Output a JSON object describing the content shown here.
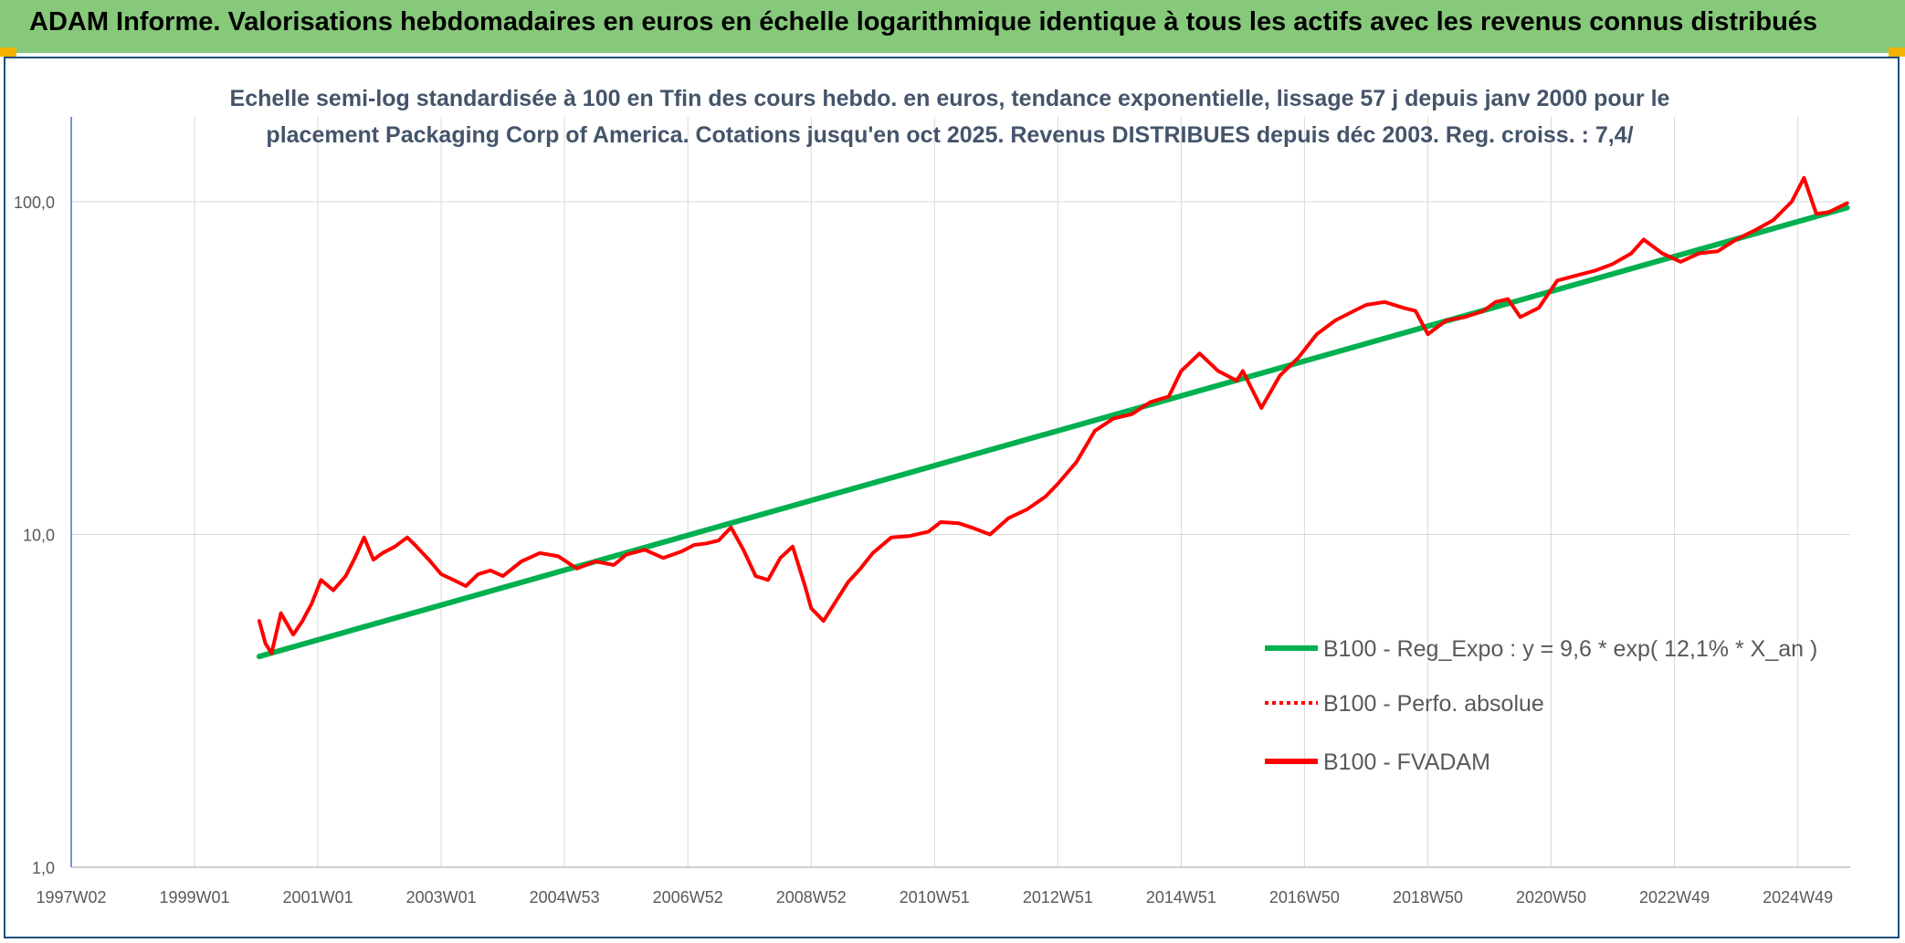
{
  "banner": {
    "title": "ADAM Informe. Valorisations hebdomadaires en euros en échelle logarithmique identique à tous les actifs avec les revenus connus distribués"
  },
  "colors": {
    "banner": "#86c97a",
    "regression": "#00b050",
    "fvadam": "#ff0000",
    "perfo": "#ff0000",
    "grid": "#d9d9d9",
    "axis": "#4472c4"
  },
  "chart_data": {
    "type": "line",
    "title_lines": [
      "Echelle semi-log standardisée à 100 en Tfin des cours hebdo. en euros, tendance exponentielle, lissage 57 j depuis janv 2000 pour le",
      "placement Packaging Corp of America. Cotations jusqu'en oct 2025. Revenus DISTRIBUES depuis déc 2003. Reg. croiss. : 7,4/"
    ],
    "y_scale": "log",
    "ylim": [
      1,
      180
    ],
    "y_ticks": [
      {
        "value": 1,
        "label": "1,0"
      },
      {
        "value": 10,
        "label": "10,0"
      },
      {
        "value": 100,
        "label": "100,0"
      }
    ],
    "xlim": [
      1997.0,
      2025.85
    ],
    "x_ticks": [
      {
        "value": 1997.0,
        "label": "1997W02"
      },
      {
        "value": 1999.0,
        "label": "1999W01"
      },
      {
        "value": 2001.0,
        "label": "2001W01"
      },
      {
        "value": 2003.0,
        "label": "2003W01"
      },
      {
        "value": 2005.0,
        "label": "2004W53"
      },
      {
        "value": 2007.0,
        "label": "2006W52"
      },
      {
        "value": 2009.0,
        "label": "2008W52"
      },
      {
        "value": 2011.0,
        "label": "2010W51"
      },
      {
        "value": 2013.0,
        "label": "2012W51"
      },
      {
        "value": 2015.0,
        "label": "2014W51"
      },
      {
        "value": 2017.0,
        "label": "2016W50"
      },
      {
        "value": 2019.0,
        "label": "2018W50"
      },
      {
        "value": 2021.0,
        "label": "2020W50"
      },
      {
        "value": 2023.0,
        "label": "2022W49"
      },
      {
        "value": 2025.0,
        "label": "2024W49"
      }
    ],
    "grid": true,
    "legend_position": "bottom-right",
    "series": [
      {
        "name": "B100 - Reg_Expo : y = 9,6 * exp( 12,1% *  X_an )",
        "style": "solid",
        "color": "#00b050",
        "x": [
          2000.05,
          2025.8
        ],
        "y": [
          4.3,
          96.0
        ]
      },
      {
        "name": "B100 - Perfo. absolue",
        "style": "dotted",
        "color": "#ff0000",
        "x": [],
        "y": []
      },
      {
        "name": "B100 - FVADAM",
        "style": "solid",
        "color": "#ff0000",
        "x": [
          2000.05,
          2000.15,
          2000.25,
          2000.4,
          2000.6,
          2000.75,
          2000.9,
          2001.05,
          2001.25,
          2001.45,
          2001.6,
          2001.75,
          2001.9,
          2002.05,
          2002.25,
          2002.45,
          2002.6,
          2002.8,
          2003.0,
          2003.2,
          2003.4,
          2003.6,
          2003.8,
          2004.0,
          2004.3,
          2004.6,
          2004.9,
          2005.2,
          2005.5,
          2005.8,
          2006.0,
          2006.3,
          2006.6,
          2006.9,
          2007.1,
          2007.3,
          2007.5,
          2007.7,
          2007.9,
          2008.1,
          2008.3,
          2008.5,
          2008.7,
          2008.9,
          2009.0,
          2009.2,
          2009.4,
          2009.6,
          2009.8,
          2010.0,
          2010.3,
          2010.6,
          2010.9,
          2011.1,
          2011.4,
          2011.6,
          2011.9,
          2012.2,
          2012.5,
          2012.8,
          2013.0,
          2013.3,
          2013.6,
          2013.9,
          2014.2,
          2014.5,
          2014.8,
          2015.0,
          2015.3,
          2015.6,
          2015.9,
          2016.0,
          2016.3,
          2016.6,
          2016.9,
          2017.2,
          2017.5,
          2017.8,
          2018.0,
          2018.3,
          2018.6,
          2018.8,
          2019.0,
          2019.3,
          2019.6,
          2019.9,
          2020.1,
          2020.3,
          2020.5,
          2020.8,
          2021.1,
          2021.4,
          2021.7,
          2022.0,
          2022.3,
          2022.5,
          2022.8,
          2023.1,
          2023.4,
          2023.7,
          2024.0,
          2024.3,
          2024.6,
          2024.9,
          2025.1,
          2025.3,
          2025.5,
          2025.8
        ],
        "y": [
          5.5,
          4.7,
          4.4,
          5.8,
          5.0,
          5.5,
          6.2,
          7.3,
          6.8,
          7.5,
          8.5,
          9.8,
          8.4,
          8.8,
          9.2,
          9.8,
          9.2,
          8.4,
          7.6,
          7.3,
          7.0,
          7.6,
          7.8,
          7.5,
          8.3,
          8.8,
          8.6,
          7.9,
          8.3,
          8.1,
          8.7,
          9.0,
          8.5,
          8.9,
          9.3,
          9.4,
          9.6,
          10.5,
          9.0,
          7.5,
          7.3,
          8.5,
          9.2,
          7.0,
          6.0,
          5.5,
          6.3,
          7.2,
          7.9,
          8.8,
          9.8,
          9.9,
          10.2,
          10.9,
          10.8,
          10.5,
          10.0,
          11.2,
          11.9,
          13.0,
          14.2,
          16.5,
          20.5,
          22.3,
          23.0,
          25.0,
          26.0,
          31.0,
          35.0,
          31.0,
          29.0,
          31.0,
          24.0,
          30.0,
          34.0,
          40.0,
          44.0,
          47.0,
          49.0,
          50.0,
          48.0,
          47.0,
          40.0,
          44.0,
          45.0,
          47.0,
          50.0,
          51.0,
          45.0,
          48.0,
          58.0,
          60.0,
          62.0,
          65.0,
          70.0,
          77.0,
          70.0,
          66.0,
          70.0,
          71.0,
          77.0,
          82.0,
          88.0,
          100.0,
          118.0,
          92.0,
          93.0,
          99.0
        ]
      }
    ]
  }
}
